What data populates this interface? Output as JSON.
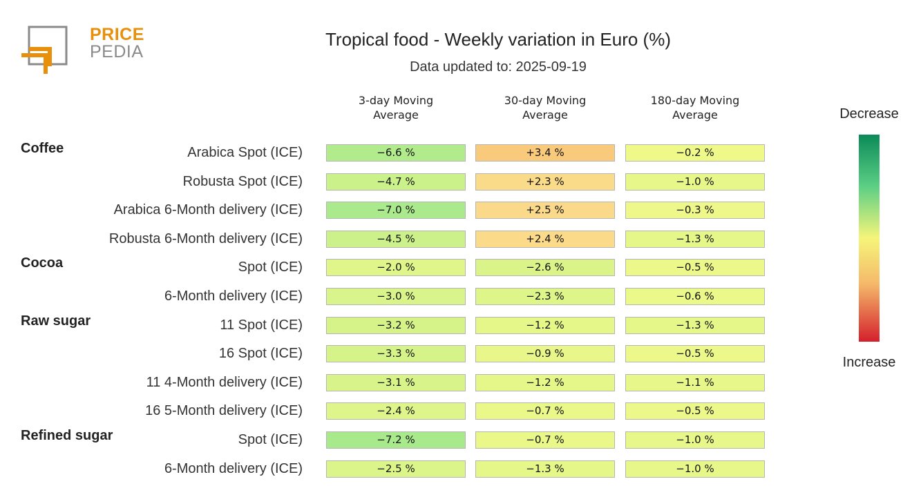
{
  "logo": {
    "line1": "PRICE",
    "line2": "PEDIA",
    "colors": {
      "orange": "#e8900c",
      "gray": "#8a8a8a"
    }
  },
  "title": "Tropical food - Weekly variation in Euro (%)",
  "subtitle": "Data updated to: 2025-09-19",
  "columns": [
    "3-day Moving Average",
    "30-day Moving Average",
    "180-day Moving Average"
  ],
  "legend": {
    "top": "Decrease",
    "bottom": "Increase"
  },
  "chart_data": {
    "type": "heatmap",
    "title": "Tropical food - Weekly variation in Euro (%)",
    "subtitle": "Data updated to: 2025-09-19",
    "columns": [
      "3-day Moving Average",
      "30-day Moving Average",
      "180-day Moving Average"
    ],
    "groups": [
      {
        "name": "Coffee",
        "rows": [
          {
            "label": "Arabica Spot (ICE)",
            "values": [
              -6.6,
              3.4,
              -0.2
            ]
          },
          {
            "label": "Robusta Spot (ICE)",
            "values": [
              -4.7,
              2.3,
              -1.0
            ]
          },
          {
            "label": "Arabica 6-Month delivery (ICE)",
            "values": [
              -7.0,
              2.5,
              -0.3
            ]
          },
          {
            "label": "Robusta 6-Month delivery (ICE)",
            "values": [
              -4.5,
              2.4,
              -1.3
            ]
          }
        ]
      },
      {
        "name": "Cocoa",
        "rows": [
          {
            "label": "Spot (ICE)",
            "values": [
              -2.0,
              -2.6,
              -0.5
            ]
          },
          {
            "label": "6-Month delivery (ICE)",
            "values": [
              -3.0,
              -2.3,
              -0.6
            ]
          }
        ]
      },
      {
        "name": "Raw sugar",
        "rows": [
          {
            "label": "11 Spot (ICE)",
            "values": [
              -3.2,
              -1.2,
              -1.3
            ]
          },
          {
            "label": "16 Spot (ICE)",
            "values": [
              -3.3,
              -0.9,
              -0.5
            ]
          },
          {
            "label": "11 4-Month delivery (ICE)",
            "values": [
              -3.1,
              -1.2,
              -1.1
            ]
          },
          {
            "label": "16 5-Month delivery (ICE)",
            "values": [
              -2.4,
              -0.7,
              -0.5
            ]
          }
        ]
      },
      {
        "name": "Refined sugar",
        "rows": [
          {
            "label": "Spot (ICE)",
            "values": [
              -7.2,
              -0.7,
              -1.0
            ]
          },
          {
            "label": "6-Month delivery (ICE)",
            "values": [
              -2.5,
              -1.3,
              -1.0
            ]
          }
        ]
      }
    ],
    "colorscale": {
      "decrease": "#0b8a58",
      "neutral": "#f5f57a",
      "increase": "#d4202c"
    }
  }
}
